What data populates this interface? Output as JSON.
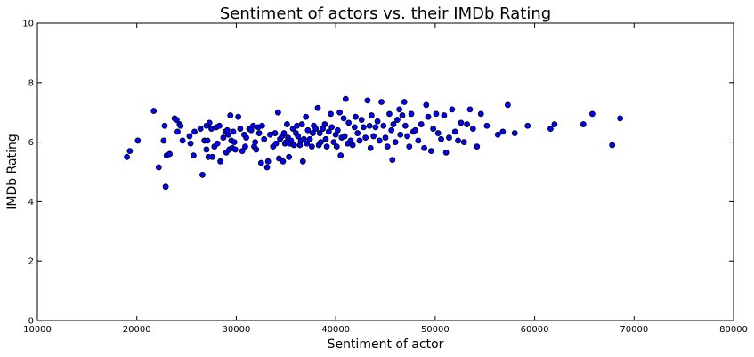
{
  "chart_data": {
    "type": "scatter",
    "title": "Sentiment of actors vs. their IMDb Rating",
    "xlabel": "Sentiment of actor",
    "ylabel": "IMDb Rating",
    "xlim": [
      10000,
      80000
    ],
    "ylim": [
      0,
      10
    ],
    "xticks": [
      10000,
      20000,
      30000,
      40000,
      50000,
      60000,
      70000,
      80000
    ],
    "yticks": [
      0,
      2,
      4,
      6,
      8,
      10
    ],
    "grid": false,
    "legend": "none",
    "marker_color": "#0000ff",
    "series": [
      {
        "points": [
          [
            19000,
            5.5
          ],
          [
            19300,
            5.7
          ],
          [
            20100,
            6.05
          ],
          [
            21700,
            7.05
          ],
          [
            22200,
            5.15
          ],
          [
            22700,
            6.05
          ],
          [
            22800,
            6.55
          ],
          [
            22900,
            4.5
          ],
          [
            23000,
            5.55
          ],
          [
            23300,
            5.6
          ],
          [
            23800,
            6.8
          ],
          [
            24000,
            6.75
          ],
          [
            24100,
            6.35
          ],
          [
            24300,
            6.6
          ],
          [
            24400,
            6.55
          ],
          [
            24600,
            6.05
          ],
          [
            25300,
            6.2
          ],
          [
            25400,
            5.95
          ],
          [
            25700,
            5.55
          ],
          [
            25800,
            6.35
          ],
          [
            26400,
            6.45
          ],
          [
            26600,
            4.9
          ],
          [
            26800,
            6.05
          ],
          [
            27000,
            6.55
          ],
          [
            27000,
            5.75
          ],
          [
            27100,
            6.05
          ],
          [
            27200,
            5.5
          ],
          [
            27300,
            6.65
          ],
          [
            27500,
            6.45
          ],
          [
            27600,
            5.5
          ],
          [
            27800,
            5.85
          ],
          [
            28000,
            6.5
          ],
          [
            28100,
            5.95
          ],
          [
            28300,
            6.55
          ],
          [
            28400,
            5.35
          ],
          [
            28700,
            6.15
          ],
          [
            28900,
            6.35
          ],
          [
            29000,
            5.65
          ],
          [
            29100,
            6.4
          ],
          [
            29200,
            6.25
          ],
          [
            29300,
            5.75
          ],
          [
            29400,
            6.9
          ],
          [
            29500,
            6.05
          ],
          [
            29600,
            5.8
          ],
          [
            29700,
            6.35
          ],
          [
            29800,
            6.0
          ],
          [
            29900,
            5.75
          ],
          [
            30200,
            6.85
          ],
          [
            30400,
            6.45
          ],
          [
            30600,
            5.7
          ],
          [
            30800,
            6.25
          ],
          [
            30900,
            5.85
          ],
          [
            31000,
            6.15
          ],
          [
            31300,
            6.45
          ],
          [
            31500,
            6.4
          ],
          [
            31700,
            6.55
          ],
          [
            31800,
            5.85
          ],
          [
            31900,
            6.0
          ],
          [
            32000,
            5.75
          ],
          [
            32200,
            6.5
          ],
          [
            32300,
            6.3
          ],
          [
            32500,
            5.3
          ],
          [
            32600,
            6.55
          ],
          [
            32800,
            6.1
          ],
          [
            33100,
            5.15
          ],
          [
            33200,
            5.35
          ],
          [
            33400,
            6.25
          ],
          [
            33700,
            5.85
          ],
          [
            33900,
            6.3
          ],
          [
            34000,
            5.95
          ],
          [
            34200,
            7.0
          ],
          [
            34300,
            5.45
          ],
          [
            34400,
            6.1
          ],
          [
            34600,
            6.2
          ],
          [
            34700,
            5.35
          ],
          [
            34800,
            6.3
          ],
          [
            34900,
            5.95
          ],
          [
            35000,
            6.0
          ],
          [
            35100,
            6.6
          ],
          [
            35200,
            6.15
          ],
          [
            35300,
            5.5
          ],
          [
            35400,
            5.95
          ],
          [
            35500,
            6.05
          ],
          [
            35700,
            6.45
          ],
          [
            35800,
            5.9
          ],
          [
            36000,
            6.3
          ],
          [
            36100,
            6.55
          ],
          [
            36200,
            6.2
          ],
          [
            36400,
            5.9
          ],
          [
            36500,
            6.05
          ],
          [
            36600,
            6.6
          ],
          [
            36700,
            5.35
          ],
          [
            36800,
            6.1
          ],
          [
            37000,
            6.85
          ],
          [
            37100,
            5.95
          ],
          [
            37200,
            6.4
          ],
          [
            37400,
            6.1
          ],
          [
            37600,
            5.85
          ],
          [
            37700,
            6.3
          ],
          [
            37800,
            6.55
          ],
          [
            38000,
            6.45
          ],
          [
            38200,
            7.15
          ],
          [
            38300,
            5.9
          ],
          [
            38400,
            6.3
          ],
          [
            38500,
            6.0
          ],
          [
            38700,
            6.45
          ],
          [
            38900,
            6.6
          ],
          [
            39000,
            6.1
          ],
          [
            39100,
            5.85
          ],
          [
            39300,
            6.35
          ],
          [
            39500,
            6.95
          ],
          [
            39600,
            6.5
          ],
          [
            39800,
            6.0
          ],
          [
            40000,
            6.25
          ],
          [
            40100,
            5.85
          ],
          [
            40200,
            6.4
          ],
          [
            40400,
            7.0
          ],
          [
            40500,
            5.55
          ],
          [
            40600,
            6.15
          ],
          [
            40800,
            6.8
          ],
          [
            40900,
            6.2
          ],
          [
            41000,
            7.45
          ],
          [
            41200,
            5.95
          ],
          [
            41300,
            6.65
          ],
          [
            41500,
            6.05
          ],
          [
            41700,
            5.9
          ],
          [
            41900,
            6.5
          ],
          [
            42000,
            6.85
          ],
          [
            42200,
            6.3
          ],
          [
            42400,
            6.05
          ],
          [
            42600,
            6.75
          ],
          [
            42800,
            6.5
          ],
          [
            43000,
            6.15
          ],
          [
            43200,
            7.4
          ],
          [
            43400,
            6.55
          ],
          [
            43500,
            5.8
          ],
          [
            43600,
            6.9
          ],
          [
            43800,
            6.2
          ],
          [
            44000,
            6.5
          ],
          [
            44200,
            6.7
          ],
          [
            44400,
            6.05
          ],
          [
            44600,
            7.35
          ],
          [
            44800,
            6.55
          ],
          [
            45000,
            6.15
          ],
          [
            45200,
            5.85
          ],
          [
            45400,
            6.95
          ],
          [
            45600,
            6.4
          ],
          [
            45700,
            5.4
          ],
          [
            45800,
            6.6
          ],
          [
            46000,
            6.0
          ],
          [
            46200,
            6.75
          ],
          [
            46400,
            7.1
          ],
          [
            46500,
            6.25
          ],
          [
            46700,
            6.9
          ],
          [
            46900,
            7.35
          ],
          [
            47000,
            6.55
          ],
          [
            47200,
            6.2
          ],
          [
            47400,
            5.85
          ],
          [
            47600,
            6.95
          ],
          [
            47800,
            6.35
          ],
          [
            48000,
            6.4
          ],
          [
            48300,
            6.05
          ],
          [
            48600,
            6.6
          ],
          [
            48900,
            5.8
          ],
          [
            49100,
            7.25
          ],
          [
            49300,
            6.85
          ],
          [
            49600,
            5.7
          ],
          [
            49800,
            6.45
          ],
          [
            50100,
            6.95
          ],
          [
            50300,
            6.3
          ],
          [
            50600,
            6.1
          ],
          [
            50900,
            6.9
          ],
          [
            51100,
            5.65
          ],
          [
            51400,
            6.15
          ],
          [
            51700,
            7.1
          ],
          [
            52000,
            6.35
          ],
          [
            52300,
            6.05
          ],
          [
            52600,
            6.65
          ],
          [
            52900,
            6.0
          ],
          [
            53200,
            6.6
          ],
          [
            53500,
            7.1
          ],
          [
            53800,
            6.45
          ],
          [
            54200,
            5.85
          ],
          [
            54600,
            6.95
          ],
          [
            55200,
            6.55
          ],
          [
            56300,
            6.25
          ],
          [
            56800,
            6.35
          ],
          [
            57300,
            7.25
          ],
          [
            58000,
            6.3
          ],
          [
            59300,
            6.55
          ],
          [
            61600,
            6.45
          ],
          [
            62000,
            6.6
          ],
          [
            64900,
            6.6
          ],
          [
            65800,
            6.95
          ],
          [
            67800,
            5.9
          ],
          [
            68600,
            6.8
          ]
        ]
      }
    ]
  }
}
